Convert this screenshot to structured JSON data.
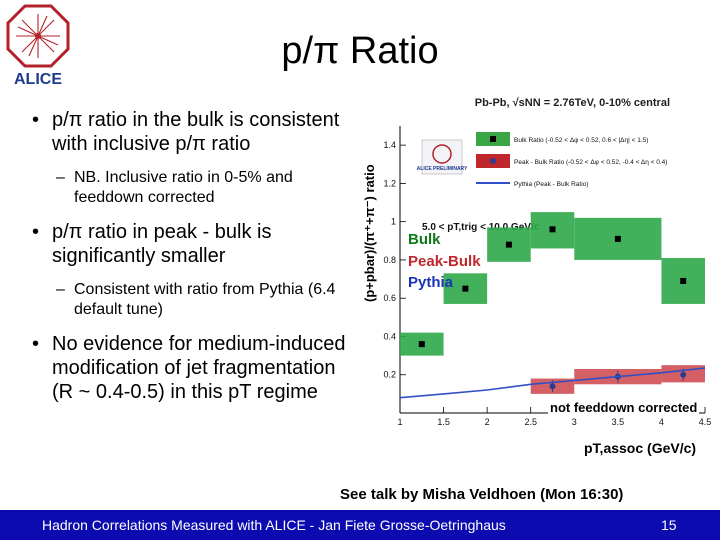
{
  "logo": {
    "text": "ALICE",
    "color": "#b3222a"
  },
  "slide": {
    "title": "p/π Ratio",
    "bullets": [
      {
        "level": 1,
        "text": "p/π ratio in the bulk is consistent with inclusive p/π ratio"
      },
      {
        "level": 2,
        "text": "NB. Inclusive ratio in 0-5% and feeddown corrected"
      },
      {
        "level": 1,
        "text": "p/π ratio in peak - bulk is significantly smaller"
      },
      {
        "level": 2,
        "text": "Consistent with ratio from Pythia (6.4 default tune)"
      },
      {
        "level": 1,
        "text": "No evidence for medium-induced modification of jet fragmentation (R ~ 0.4-0.5) in this pT regime"
      }
    ],
    "talk_note": "See talk by Misha Veldhoen (Mon 16:30)",
    "footer": "Hadron Correlations Measured with ALICE - Jan Fiete Grosse-Oetringhaus",
    "page_number": "15"
  },
  "chart_data": {
    "type": "scatter",
    "header": "Pb-Pb, √sNN = 2.76TeV, 0-10% central",
    "ylabel": "(p+pbar)/(π⁺+π⁻) ratio",
    "xlabel": "pT,assoc (GeV/c)",
    "xlim": [
      1,
      4.5
    ],
    "ylim": [
      0,
      1.5
    ],
    "x_ticks": [
      1,
      1.5,
      2,
      2.5,
      3,
      3.5,
      4,
      4.5
    ],
    "y_ticks": [
      0.2,
      0.4,
      0.6,
      0.8,
      1,
      1.2,
      1.4
    ],
    "trigger_label": "5.0 < pT,trig < 10.0 GeV/c",
    "preliminary_label": "ALICE PRELIMINARY",
    "legend": [
      {
        "label": "Bulk Ratio (-0.52 < Δφ < 0.52, 0.6 < |Δη| < 1.5)",
        "color": "#3aa544",
        "marker": "square"
      },
      {
        "label": "Peak - Bulk Ratio (-0.52 < Δφ < 0.52, -0.4 < Δη < 0.4)",
        "color": "#c0272d",
        "marker": "circle"
      },
      {
        "label": "Pythia (Peak - Bulk Ratio)",
        "color": "#2f4fc6",
        "marker": "line"
      }
    ],
    "annotations": {
      "bulk": "Bulk",
      "peak": "Peak-Bulk",
      "pythia": "Pythia",
      "feeddown": "not feeddown corrected"
    },
    "series": [
      {
        "name": "Bulk",
        "color": "#3aa544",
        "band_color": "#2fa84a",
        "points": [
          {
            "x": 1.25,
            "y": 0.36,
            "x_lo": 1.0,
            "x_hi": 1.5,
            "sys_lo": 0.3,
            "sys_hi": 0.42
          },
          {
            "x": 1.75,
            "y": 0.65,
            "x_lo": 1.5,
            "x_hi": 2.0,
            "sys_lo": 0.57,
            "sys_hi": 0.73
          },
          {
            "x": 2.25,
            "y": 0.88,
            "x_lo": 2.0,
            "x_hi": 2.5,
            "sys_lo": 0.79,
            "sys_hi": 0.97
          },
          {
            "x": 2.75,
            "y": 0.96,
            "x_lo": 2.5,
            "x_hi": 3.0,
            "sys_lo": 0.86,
            "sys_hi": 1.05
          },
          {
            "x": 3.5,
            "y": 0.91,
            "x_lo": 3.0,
            "x_hi": 4.0,
            "sys_lo": 0.8,
            "sys_hi": 1.02
          },
          {
            "x": 4.25,
            "y": 0.69,
            "x_lo": 4.0,
            "x_hi": 4.5,
            "sys_lo": 0.57,
            "sys_hi": 0.81
          }
        ]
      },
      {
        "name": "Peak-Bulk",
        "color": "#2e3b8f",
        "band_color": "#cf4f54",
        "points": [
          {
            "x": 2.75,
            "y": 0.14,
            "x_lo": 2.5,
            "x_hi": 3.0,
            "sys_lo": 0.1,
            "sys_hi": 0.18
          },
          {
            "x": 3.5,
            "y": 0.19,
            "x_lo": 3.0,
            "x_hi": 4.0,
            "sys_lo": 0.15,
            "sys_hi": 0.23
          },
          {
            "x": 4.25,
            "y": 0.2,
            "x_lo": 4.0,
            "x_hi": 4.5,
            "sys_lo": 0.16,
            "sys_hi": 0.25
          }
        ]
      },
      {
        "name": "Pythia",
        "color": "#2f4fc6",
        "points": [
          {
            "x": 1.0,
            "y": 0.08
          },
          {
            "x": 1.5,
            "y": 0.1
          },
          {
            "x": 2.0,
            "y": 0.12
          },
          {
            "x": 2.5,
            "y": 0.15
          },
          {
            "x": 3.0,
            "y": 0.17
          },
          {
            "x": 3.5,
            "y": 0.19
          },
          {
            "x": 4.0,
            "y": 0.21
          },
          {
            "x": 4.5,
            "y": 0.235
          }
        ]
      }
    ]
  }
}
